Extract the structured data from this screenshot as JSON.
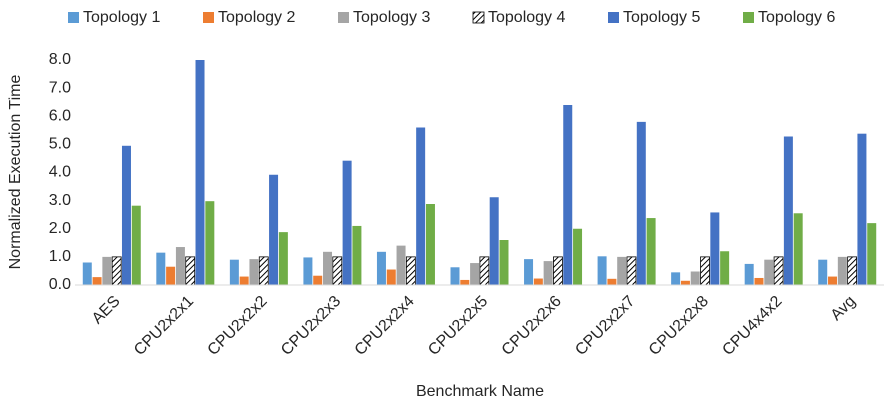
{
  "chart_data": {
    "type": "bar",
    "categories": [
      "AES",
      "CPU2x2x1",
      "CPU2x2x2",
      "CPU2x2x3",
      "CPU2x2x4",
      "CPU2x2x5",
      "CPU2x2x6",
      "CPU2x2x7",
      "CPU2x2x8",
      "CPU4x4x2",
      "Avg"
    ],
    "series": [
      {
        "name": "Topology 1",
        "color": "#5b9bd5",
        "values": [
          0.8,
          1.15,
          0.9,
          0.98,
          1.18,
          0.63,
          0.92,
          1.02,
          0.45,
          0.75,
          0.9
        ]
      },
      {
        "name": "Topology 2",
        "color": "#ed7d31",
        "values": [
          0.28,
          0.65,
          0.3,
          0.33,
          0.55,
          0.18,
          0.23,
          0.22,
          0.15,
          0.25,
          0.3
        ]
      },
      {
        "name": "Topology 3",
        "color": "#a5a5a5",
        "values": [
          1.0,
          1.35,
          0.92,
          1.18,
          1.4,
          0.78,
          0.85,
          1.0,
          0.48,
          0.9,
          1.0
        ]
      },
      {
        "name": "Topology 4",
        "color": "#000000",
        "hatch": true,
        "values": [
          1.0,
          1.0,
          1.0,
          1.0,
          1.0,
          1.0,
          1.0,
          1.0,
          1.0,
          1.0,
          1.0
        ]
      },
      {
        "name": "Topology 5",
        "color": "#4472c4",
        "values": [
          4.95,
          8.0,
          3.92,
          4.42,
          5.6,
          3.12,
          6.4,
          5.8,
          2.58,
          5.28,
          5.38
        ]
      },
      {
        "name": "Topology 6",
        "color": "#70ad47",
        "values": [
          2.82,
          2.98,
          1.88,
          2.1,
          2.88,
          1.6,
          2.0,
          2.38,
          1.2,
          2.55,
          2.2
        ]
      }
    ],
    "x_label": "Benchmark Name",
    "y_label": "Normalized Execution Time",
    "ylim": [
      0,
      8
    ],
    "yticks": [
      {
        "value": 0,
        "label": "0.0"
      },
      {
        "value": 1,
        "label": "1.0"
      },
      {
        "value": 2,
        "label": "2.0"
      },
      {
        "value": 3,
        "label": "3.0"
      },
      {
        "value": 4,
        "label": "4.0"
      },
      {
        "value": 5,
        "label": "5.0"
      },
      {
        "value": 6,
        "label": "6.0"
      },
      {
        "value": 7,
        "label": "7.0"
      },
      {
        "value": 8,
        "label": "8.0"
      }
    ],
    "grid": false,
    "legend": "top"
  }
}
